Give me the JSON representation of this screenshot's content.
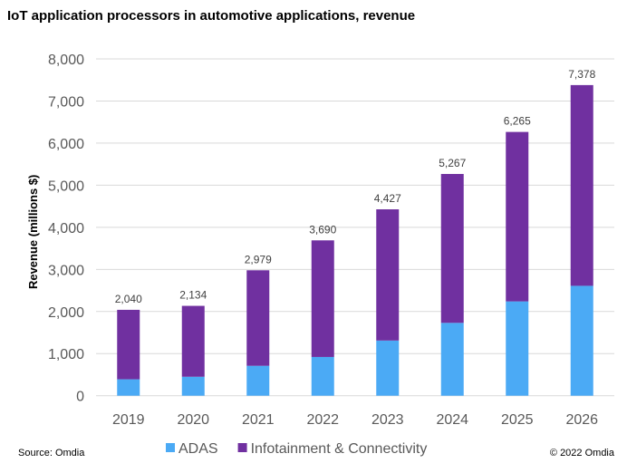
{
  "title": "IoT application processors in automotive applications, revenue",
  "source": "Source: Omdia",
  "copyright": "© 2022 Omdia",
  "chart_data": {
    "type": "bar",
    "stacked": true,
    "title": "IoT application processors in automotive applications, revenue",
    "xlabel": "",
    "ylabel": "Revenue  (millions $)",
    "ylim": [
      0,
      8000
    ],
    "yticks": [
      0,
      1000,
      2000,
      3000,
      4000,
      5000,
      6000,
      7000,
      8000
    ],
    "ytick_labels": [
      "0",
      "1,000",
      "2,000",
      "3,000",
      "4,000",
      "5,000",
      "6,000",
      "7,000",
      "8,000"
    ],
    "grid": true,
    "legend": "bottom",
    "categories": [
      "2019",
      "2020",
      "2021",
      "2022",
      "2023",
      "2024",
      "2025",
      "2026"
    ],
    "series": [
      {
        "name": "ADAS",
        "color": "#4BAAF5",
        "values": [
          390,
          450,
          710,
          920,
          1310,
          1730,
          2240,
          2610
        ]
      },
      {
        "name": "Infotainment & Connectivity",
        "color": "#7030A0",
        "values": [
          1650,
          1684,
          2269,
          2770,
          3117,
          3537,
          4025,
          4768
        ]
      }
    ],
    "totals": [
      2040,
      2134,
      2979,
      3690,
      4427,
      5267,
      6265,
      7378
    ],
    "total_labels": [
      "2,040",
      "2,134",
      "2,979",
      "3,690",
      "4,427",
      "5,267",
      "6,265",
      "7,378"
    ]
  }
}
